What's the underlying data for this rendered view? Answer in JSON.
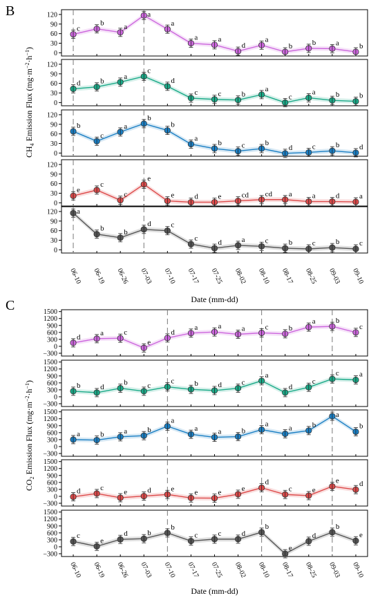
{
  "figure": {
    "panel_b_label": "B",
    "panel_c_label": "C"
  },
  "chart_data": [
    {
      "type": "line",
      "panel": "B",
      "categories": [
        "06-10",
        "06-19",
        "06-26",
        "07-03",
        "07-10",
        "07-17",
        "07-25",
        "08-02",
        "08-10",
        "08-17",
        "08-25",
        "09-03",
        "09-10"
      ],
      "xlabel": "Date (mm-dd)",
      "ylabel_main": "CH",
      "ylabel_sub": "4",
      "ylabel_rest": " Emission Flux (mg·m",
      "ylabel_exp1": "−2",
      "ylabel_mid": "·h",
      "ylabel_exp2": "−1",
      "ylabel_end": ")",
      "ylim": [
        -10,
        135
      ],
      "yticks": [
        0,
        30,
        60,
        90,
        120
      ],
      "vlines": [
        "06-10",
        "07-03"
      ],
      "grid": false,
      "series": [
        {
          "color": "#cc66dd",
          "values": [
            58,
            75,
            64,
            117,
            74,
            30,
            25,
            5,
            24,
            3,
            14,
            13,
            3
          ],
          "letters": [
            "c",
            "b",
            "a",
            "a",
            "a",
            "a",
            "a",
            "d",
            "a",
            "b",
            "b",
            "a",
            "b"
          ]
        },
        {
          "color": "#1aaa88",
          "values": [
            43,
            49,
            64,
            82,
            51,
            14,
            10,
            8,
            25,
            0,
            15,
            7,
            4
          ],
          "letters": [
            "d",
            "b",
            "a",
            "c",
            "d",
            "c",
            "c",
            "b",
            "a",
            "c",
            "a",
            "b",
            "b"
          ]
        },
        {
          "color": "#1a7fc4",
          "values": [
            68,
            37,
            66,
            92,
            71,
            28,
            14,
            6,
            14,
            -1,
            2,
            7,
            1
          ],
          "letters": [
            "b",
            "c",
            "a",
            "b",
            "b",
            "a",
            "b",
            "c",
            "b",
            "d",
            "c",
            "b",
            "d"
          ]
        },
        {
          "color": "#dd4a4a",
          "values": [
            22,
            40,
            8,
            58,
            6,
            2,
            2,
            6,
            10,
            10,
            4,
            4,
            3
          ],
          "letters": [
            "e",
            "c",
            "c",
            "e",
            "e",
            "d",
            "e",
            "cd",
            "cd",
            "a",
            "a",
            "d",
            "a"
          ]
        },
        {
          "color": "#555555",
          "values": [
            115,
            49,
            38,
            64,
            60,
            18,
            5,
            14,
            11,
            5,
            3,
            7,
            3
          ],
          "letters": [
            "a",
            "b",
            "b",
            "d",
            "c",
            "c",
            "d",
            "a",
            "c",
            "b",
            "c",
            "b",
            "c"
          ]
        }
      ]
    },
    {
      "type": "line",
      "panel": "C",
      "categories": [
        "06-10",
        "06-19",
        "06-26",
        "07-03",
        "07-10",
        "07-17",
        "07-25",
        "08-02",
        "08-10",
        "08-17",
        "08-25",
        "09-03",
        "09-10"
      ],
      "xlabel": "Date (mm-dd)",
      "ylabel_main": "CO",
      "ylabel_sub": "2",
      "ylabel_rest": " Emission Flux (mg·m",
      "ylabel_exp1": "−2",
      "ylabel_mid": "·h",
      "ylabel_exp2": "−1",
      "ylabel_end": ")",
      "ylim": [
        -420,
        1580
      ],
      "yticks": [
        -300,
        0,
        300,
        600,
        900,
        1200,
        1500
      ],
      "vlines": [
        "07-10",
        "08-10",
        "09-03"
      ],
      "grid": false,
      "series": [
        {
          "color": "#cc66dd",
          "values": [
            150,
            330,
            350,
            -70,
            360,
            570,
            620,
            520,
            580,
            540,
            830,
            860,
            600
          ],
          "letters": [
            "d",
            "a",
            "c",
            "e",
            "d",
            "a",
            "a",
            "a",
            "c",
            "b",
            "a",
            "b",
            "c"
          ]
        },
        {
          "color": "#1aaa88",
          "values": [
            240,
            180,
            370,
            240,
            430,
            320,
            270,
            370,
            690,
            180,
            410,
            770,
            730
          ],
          "letters": [
            "b",
            "d",
            "b",
            "c",
            "c",
            "b",
            "d",
            "c",
            "a",
            "d",
            "c",
            "c",
            "a"
          ]
        },
        {
          "color": "#1a7fc4",
          "values": [
            300,
            280,
            420,
            470,
            880,
            530,
            400,
            430,
            730,
            550,
            690,
            1310,
            640
          ],
          "letters": [
            "a",
            "b",
            "a",
            "b",
            "a",
            "a",
            "a",
            "b",
            "a",
            "a",
            "b",
            "a",
            "b"
          ]
        },
        {
          "color": "#dd4a4a",
          "values": [
            -20,
            120,
            -60,
            10,
            80,
            -70,
            -80,
            90,
            370,
            80,
            30,
            430,
            290
          ],
          "letters": [
            "d",
            "c",
            "e",
            "d",
            "e",
            "e",
            "e",
            "e",
            "d",
            "c",
            "e",
            "e",
            "d"
          ]
        },
        {
          "color": "#555555",
          "values": [
            230,
            20,
            320,
            350,
            600,
            250,
            330,
            330,
            630,
            -300,
            240,
            630,
            260
          ],
          "letters": [
            "c",
            "e",
            "d",
            "b",
            "b",
            "c",
            "c",
            "d",
            "b",
            "e",
            "d",
            "b",
            "e"
          ]
        }
      ]
    }
  ]
}
